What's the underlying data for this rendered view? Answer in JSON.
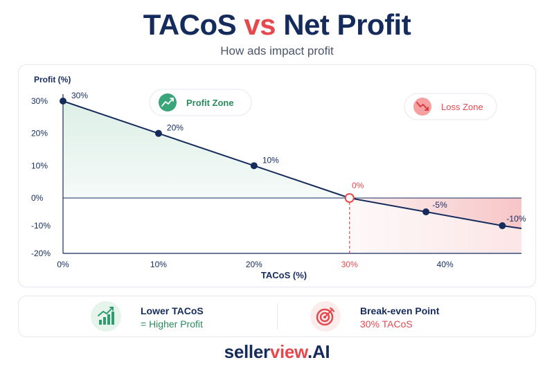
{
  "header": {
    "title_part1": "TACoS ",
    "title_vs": "vs",
    "title_part2": " Net Profit",
    "subtitle": "How ads impact profit"
  },
  "zones": {
    "profit_label": "Profit Zone",
    "loss_label": "Loss Zone"
  },
  "chart_data": {
    "type": "line",
    "xlabel": "TACoS (%)",
    "ylabel": "Profit (%)",
    "xlim": [
      0,
      48
    ],
    "ylim": [
      -20,
      30
    ],
    "x_ticks": [
      0,
      10,
      20,
      30,
      40
    ],
    "x_tick_labels": [
      "0%",
      "10%",
      "20%",
      "30%",
      "40%"
    ],
    "y_ticks": [
      30,
      20,
      10,
      0,
      -10,
      -20
    ],
    "y_tick_labels": [
      "30%",
      "20%",
      "10%",
      "0%",
      "-10%",
      "-20%"
    ],
    "points": [
      {
        "x": 0,
        "y": 30,
        "label": "30%"
      },
      {
        "x": 10,
        "y": 20,
        "label": "20%"
      },
      {
        "x": 20,
        "y": 10,
        "label": "10%"
      },
      {
        "x": 30,
        "y": 0,
        "label": "0%",
        "highlight": true
      },
      {
        "x": 38,
        "y": -5,
        "label": "-5%"
      },
      {
        "x": 46,
        "y": -10,
        "label": "-10%"
      }
    ],
    "line_end": {
      "x": 48,
      "y": -11
    },
    "break_even_x": 30,
    "colors": {
      "line": "#142b5c",
      "profit_fill": "#2f9e6e",
      "loss_fill": "#e5484d",
      "break_even": "#e5484d"
    }
  },
  "footer": {
    "left_line1": "Lower TACoS",
    "left_line2": "= Higher Profit",
    "right_line1": "Break-even Point",
    "right_line2": "30% TACoS",
    "left_icon": "growth-bars-icon",
    "right_icon": "target-icon"
  },
  "brand": {
    "part1": "seller",
    "part2": "view",
    "part3": ".AI"
  }
}
